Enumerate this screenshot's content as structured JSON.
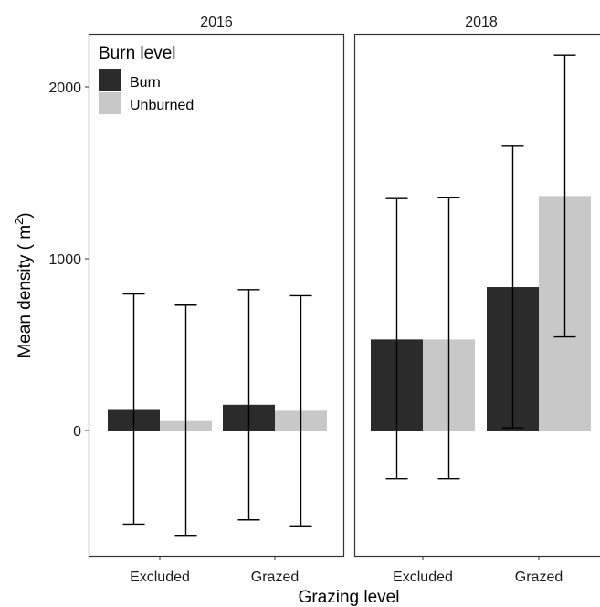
{
  "chart_data": {
    "type": "bar",
    "facets": [
      "2016",
      "2018"
    ],
    "categories": [
      "Excluded",
      "Grazed"
    ],
    "xlabel": "Grazing level",
    "ylabel_main": "Mean density ( m",
    "ylabel_sup": "2",
    "ylabel_close": ")",
    "ylim": [
      -750,
      2300
    ],
    "yticks": [
      0,
      1000,
      2000
    ],
    "yticklabels": [
      "0",
      "1000",
      "2000"
    ],
    "legend": {
      "title": "Burn level",
      "position": "top-left"
    },
    "series": [
      {
        "name": "Burn",
        "color": "#2b2b2b",
        "values": {
          "2016": [
            125,
            150
          ],
          "2018": [
            530,
            835
          ]
        },
        "lower": {
          "2016": [
            -545,
            -520
          ],
          "2018": [
            -280,
            15
          ]
        },
        "upper": {
          "2016": [
            795,
            820
          ],
          "2018": [
            1350,
            1655
          ]
        }
      },
      {
        "name": "Unburned",
        "color": "#c8c8c8",
        "values": {
          "2016": [
            60,
            115
          ],
          "2018": [
            530,
            1365
          ]
        },
        "lower": {
          "2016": [
            -610,
            -555
          ],
          "2018": [
            -280,
            545
          ]
        },
        "upper": {
          "2016": [
            730,
            785
          ],
          "2018": [
            1355,
            2185
          ]
        }
      }
    ],
    "grid": false
  }
}
